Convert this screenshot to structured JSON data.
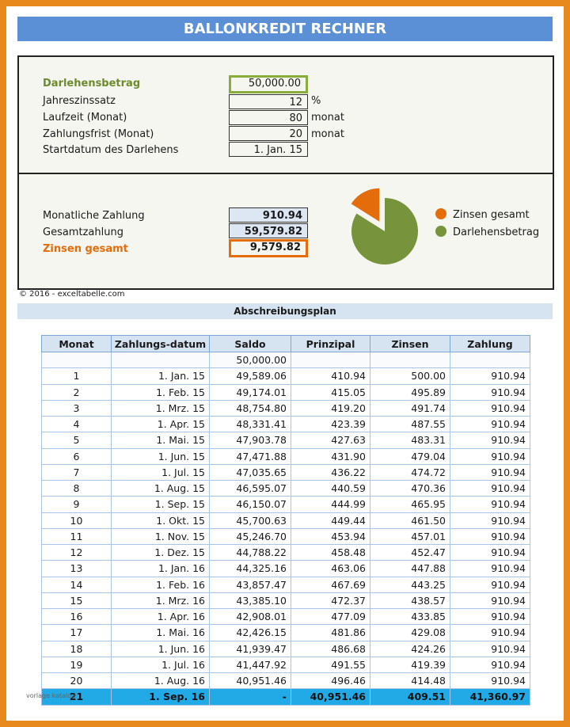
{
  "title": "BALLONKREDIT RECHNER",
  "inputs": {
    "loan_label": "Darlehensbetrag",
    "loan_value": "50,000.00",
    "rate_label": "Jahreszinssatz",
    "rate_value": "12",
    "rate_unit": "%",
    "term_label": "Laufzeit (Monat)",
    "term_value": "80",
    "term_unit": "monat",
    "payperiod_label": "Zahlungsfrist (Monat)",
    "payperiod_value": "20",
    "payperiod_unit": "monat",
    "start_label": "Startdatum des Darlehens",
    "start_value": "1. Jan. 15"
  },
  "results": {
    "monthly_label": "Monatliche Zahlung",
    "monthly_value": "910.94",
    "total_label": "Gesamtzahlung",
    "total_value": "59,579.82",
    "interest_label": "Zinsen gesamt",
    "interest_value": "9,579.82"
  },
  "pie": {
    "slices": [
      {
        "label": "Zinsen gesamt",
        "value": 9579.82,
        "color": "#e46c0a"
      },
      {
        "label": "Darlehensbetrag",
        "value": 50000.0,
        "color": "#77933c"
      }
    ]
  },
  "copyright": "© 2016 - exceltabelle.com",
  "schedule_title": "Abschreibungsplan",
  "table": {
    "headers": [
      "Monat",
      "Zahlungs-datum",
      "Saldo",
      "Prinzipal",
      "Zinsen",
      "Zahlung"
    ],
    "opening_balance": "50,000.00",
    "rows": [
      [
        "1",
        "1. Jan. 15",
        "49,589.06",
        "410.94",
        "500.00",
        "910.94"
      ],
      [
        "2",
        "1. Feb. 15",
        "49,174.01",
        "415.05",
        "495.89",
        "910.94"
      ],
      [
        "3",
        "1. Mrz. 15",
        "48,754.80",
        "419.20",
        "491.74",
        "910.94"
      ],
      [
        "4",
        "1. Apr. 15",
        "48,331.41",
        "423.39",
        "487.55",
        "910.94"
      ],
      [
        "5",
        "1. Mai. 15",
        "47,903.78",
        "427.63",
        "483.31",
        "910.94"
      ],
      [
        "6",
        "1. Jun. 15",
        "47,471.88",
        "431.90",
        "479.04",
        "910.94"
      ],
      [
        "7",
        "1. Jul. 15",
        "47,035.65",
        "436.22",
        "474.72",
        "910.94"
      ],
      [
        "8",
        "1. Aug. 15",
        "46,595.07",
        "440.59",
        "470.36",
        "910.94"
      ],
      [
        "9",
        "1. Sep. 15",
        "46,150.07",
        "444.99",
        "465.95",
        "910.94"
      ],
      [
        "10",
        "1. Okt. 15",
        "45,700.63",
        "449.44",
        "461.50",
        "910.94"
      ],
      [
        "11",
        "1. Nov. 15",
        "45,246.70",
        "453.94",
        "457.01",
        "910.94"
      ],
      [
        "12",
        "1. Dez. 15",
        "44,788.22",
        "458.48",
        "452.47",
        "910.94"
      ],
      [
        "13",
        "1. Jan. 16",
        "44,325.16",
        "463.06",
        "447.88",
        "910.94"
      ],
      [
        "14",
        "1. Feb. 16",
        "43,857.47",
        "467.69",
        "443.25",
        "910.94"
      ],
      [
        "15",
        "1. Mrz. 16",
        "43,385.10",
        "472.37",
        "438.57",
        "910.94"
      ],
      [
        "16",
        "1. Apr. 16",
        "42,908.01",
        "477.09",
        "433.85",
        "910.94"
      ],
      [
        "17",
        "1. Mai. 16",
        "42,426.15",
        "481.86",
        "429.08",
        "910.94"
      ],
      [
        "18",
        "1. Jun. 16",
        "41,939.47",
        "486.68",
        "424.26",
        "910.94"
      ],
      [
        "19",
        "1. Jul. 16",
        "41,447.92",
        "491.55",
        "419.39",
        "910.94"
      ],
      [
        "20",
        "1. Aug. 16",
        "40,951.46",
        "496.46",
        "414.48",
        "910.94"
      ]
    ],
    "final_row": [
      "21",
      "1. Sep. 16",
      "-",
      "40,951.46",
      "409.51",
      "41,360.97"
    ]
  },
  "watermark": "vorlage katalog"
}
